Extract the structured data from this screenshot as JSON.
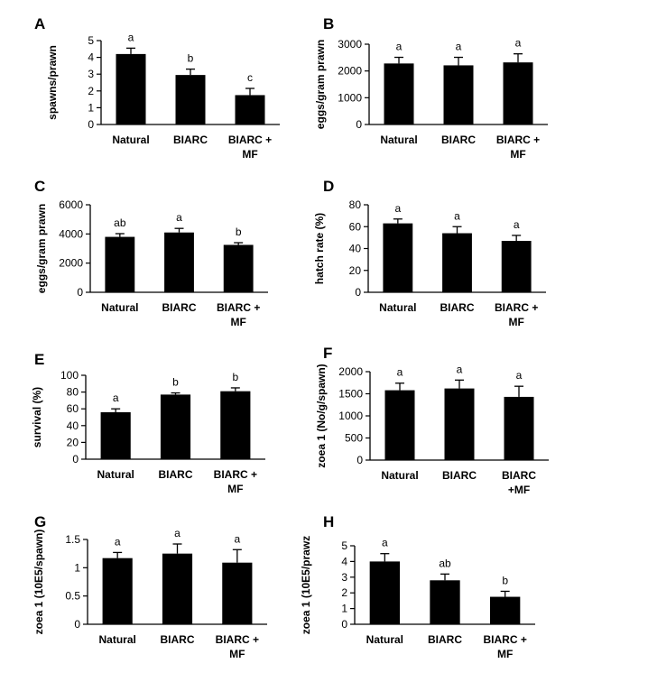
{
  "chart_data": [
    {
      "id": "A",
      "letter": "A",
      "type": "bar",
      "categories": [
        [
          "Natural"
        ],
        [
          "BIARC"
        ],
        [
          "BIARC +",
          "MF"
        ]
      ],
      "values": [
        4.2,
        2.95,
        1.75
      ],
      "errors": [
        0.35,
        0.35,
        0.4
      ],
      "sig": [
        "a",
        "b",
        "c"
      ],
      "ylabel": "spawns/prawn",
      "ylim": [
        0,
        5
      ],
      "yticks": [
        0,
        1,
        2,
        3,
        4,
        5
      ],
      "ytick_labels": [
        "0",
        "1",
        "2",
        "3",
        "4",
        "5"
      ]
    },
    {
      "id": "B",
      "letter": "B",
      "type": "bar",
      "categories": [
        [
          "Natural"
        ],
        [
          "BIARC"
        ],
        [
          "BIARC +",
          "MF"
        ]
      ],
      "values": [
        2280,
        2210,
        2320
      ],
      "errors": [
        230,
        300,
        320
      ],
      "sig": [
        "a",
        "a",
        "a"
      ],
      "ylabel": "eggs/gram prawn",
      "ylim": [
        0,
        3000
      ],
      "yticks": [
        0,
        1000,
        2000,
        3000
      ],
      "ytick_labels": [
        "0",
        "1000",
        "2000",
        "3000"
      ]
    },
    {
      "id": "C",
      "letter": "C",
      "type": "bar",
      "categories": [
        [
          "Natural"
        ],
        [
          "BIARC"
        ],
        [
          "BIARC +",
          "MF"
        ]
      ],
      "values": [
        3800,
        4100,
        3250
      ],
      "errors": [
        220,
        280,
        150
      ],
      "sig": [
        "ab",
        "a",
        "b"
      ],
      "ylabel": "eggs/gram prawn",
      "ylim": [
        0,
        6000
      ],
      "yticks": [
        0,
        2000,
        4000,
        6000
      ],
      "ytick_labels": [
        "0",
        "2000",
        "4000",
        "6000"
      ]
    },
    {
      "id": "D",
      "letter": "D",
      "type": "bar",
      "categories": [
        [
          "Natural"
        ],
        [
          "BIARC"
        ],
        [
          "BIARC +",
          "MF"
        ]
      ],
      "values": [
        63,
        54,
        47
      ],
      "errors": [
        4,
        6,
        5
      ],
      "sig": [
        "a",
        "a",
        "a"
      ],
      "ylabel": "hatch rate (%)",
      "ylim": [
        0,
        80
      ],
      "yticks": [
        0,
        20,
        40,
        60,
        80
      ],
      "ytick_labels": [
        "0",
        "20",
        "40",
        "60",
        "80"
      ]
    },
    {
      "id": "E",
      "letter": "E",
      "type": "bar",
      "categories": [
        [
          "Natural"
        ],
        [
          "BIARC"
        ],
        [
          "BIARC +",
          "MF"
        ]
      ],
      "values": [
        56,
        77,
        81
      ],
      "errors": [
        4,
        2,
        4
      ],
      "sig": [
        "a",
        "b",
        "b"
      ],
      "ylabel": "survival (%)",
      "ylim": [
        0,
        100
      ],
      "yticks": [
        0,
        20,
        40,
        60,
        80,
        100
      ],
      "ytick_labels": [
        "0",
        "20",
        "40",
        "60",
        "80",
        "100"
      ]
    },
    {
      "id": "F",
      "letter": "F",
      "type": "bar",
      "categories": [
        [
          "Natural"
        ],
        [
          "BIARC"
        ],
        [
          "BIARC",
          "+MF"
        ]
      ],
      "values": [
        1580,
        1620,
        1430
      ],
      "errors": [
        160,
        190,
        240
      ],
      "sig": [
        "a",
        "a",
        "a"
      ],
      "ylabel": "zoea 1 (No/g/spawn)",
      "ylim": [
        0,
        2000
      ],
      "yticks": [
        0,
        500,
        1000,
        1500,
        2000
      ],
      "ytick_labels": [
        "0",
        "500",
        "1000",
        "1500",
        "2000"
      ]
    },
    {
      "id": "G",
      "letter": "G",
      "type": "bar",
      "categories": [
        [
          "Natural"
        ],
        [
          "BIARC"
        ],
        [
          "BIARC +",
          "MF"
        ]
      ],
      "values": [
        1.17,
        1.25,
        1.09
      ],
      "errors": [
        0.1,
        0.17,
        0.23
      ],
      "sig": [
        "a",
        "a",
        "a"
      ],
      "ylabel": "zoea 1 (10E5/spawn)",
      "ylim": [
        0,
        1.5
      ],
      "yticks": [
        0,
        0.5,
        1,
        1.5
      ],
      "ytick_labels": [
        "0",
        "0.5",
        "1",
        "1.5"
      ]
    },
    {
      "id": "H",
      "letter": "H",
      "type": "bar",
      "categories": [
        [
          "Natural"
        ],
        [
          "BIARC"
        ],
        [
          "BIARC +",
          "MF"
        ]
      ],
      "values": [
        4.0,
        2.8,
        1.75
      ],
      "errors": [
        0.5,
        0.4,
        0.35
      ],
      "sig": [
        "a",
        "ab",
        "b"
      ],
      "ylabel": "zoea 1 (10E5/prawz",
      "ylim": [
        0,
        5
      ],
      "yticks": [
        0,
        1,
        2,
        3,
        4,
        5
      ],
      "ytick_labels": [
        "0",
        "1",
        "2",
        "3",
        "4",
        "5"
      ]
    }
  ]
}
